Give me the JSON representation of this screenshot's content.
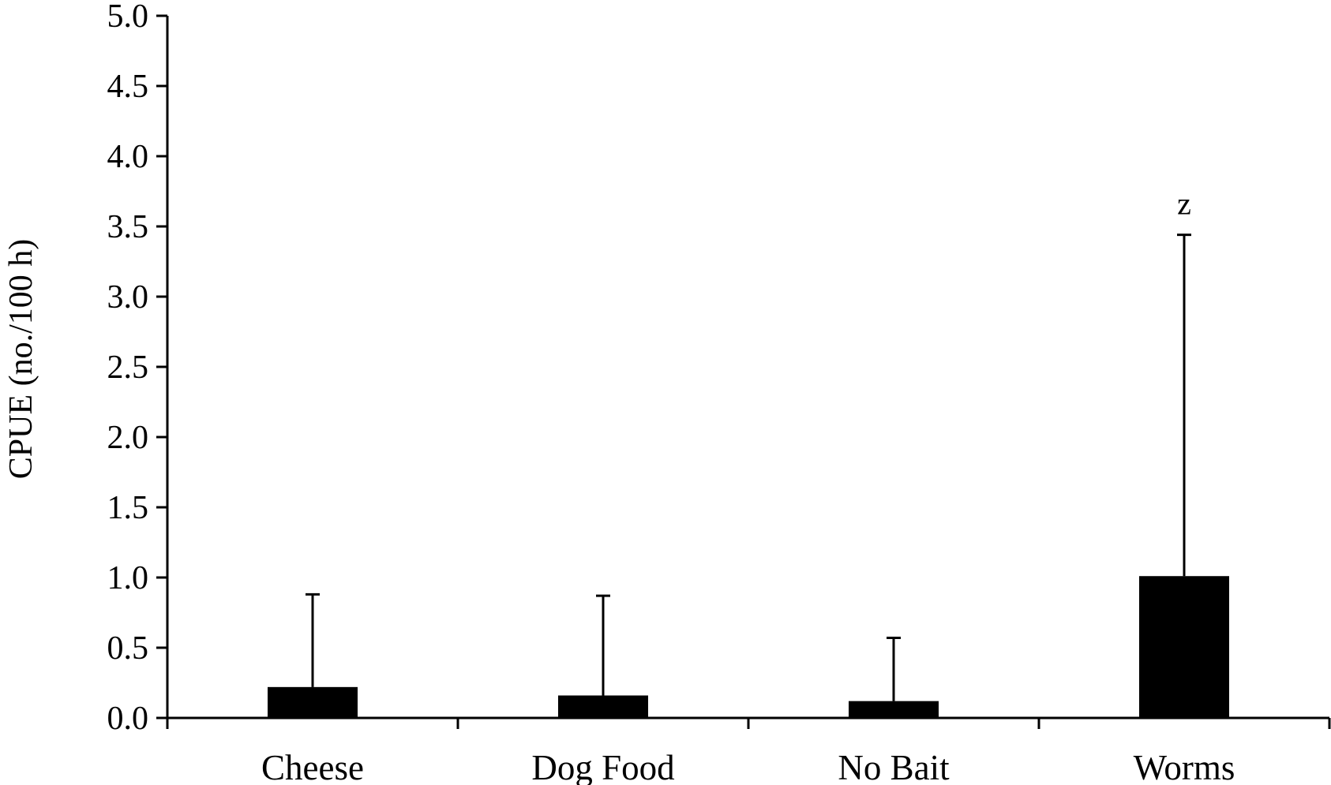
{
  "chart_data": {
    "type": "bar",
    "title": "",
    "xlabel": "",
    "ylabel": "CPUE (no./100 h)",
    "ylim": [
      0,
      5.0
    ],
    "yticks": [
      "0.0",
      "0.5",
      "1.0",
      "1.5",
      "2.0",
      "2.5",
      "3.0",
      "3.5",
      "4.0",
      "4.5",
      "5.0"
    ],
    "grid": false,
    "legend": "none",
    "categories": [
      "Cheese",
      "Dog Food",
      "No Bait",
      "Worms"
    ],
    "values": [
      0.22,
      0.16,
      0.12,
      1.01
    ],
    "error_upper": [
      0.88,
      0.87,
      0.57,
      3.44
    ],
    "annotations": [
      "",
      "",
      "",
      "z"
    ],
    "bar_color": "#000000"
  }
}
